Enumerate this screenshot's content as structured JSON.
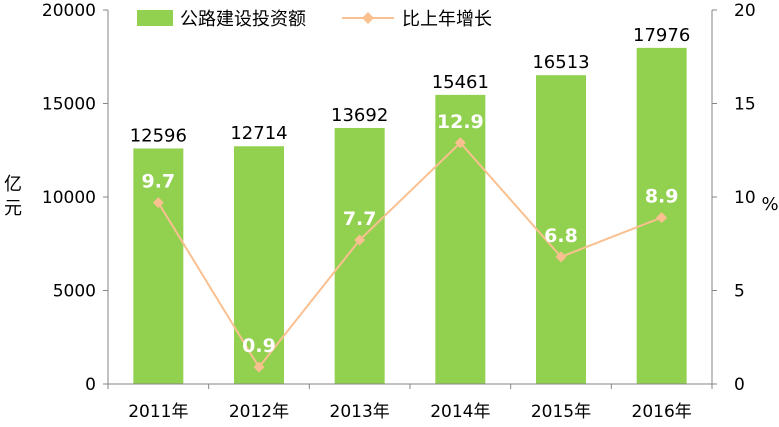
{
  "chart_data": {
    "type": "bar",
    "categories": [
      "2011年",
      "2012年",
      "2013年",
      "2014年",
      "2015年",
      "2016年"
    ],
    "series": [
      {
        "name": "公路建设投资额",
        "type": "bar",
        "axis": "left",
        "values": [
          12596,
          12714,
          13692,
          15461,
          16513,
          17976
        ],
        "labels": [
          "12596",
          "12714",
          "13692",
          "15461",
          "16513",
          "17976"
        ],
        "color": "#92d050"
      },
      {
        "name": "比上年增长",
        "type": "line",
        "axis": "right",
        "values": [
          9.7,
          0.9,
          7.7,
          12.9,
          6.8,
          8.9
        ],
        "labels": [
          "9.7",
          "0.9",
          "7.7",
          "12.9",
          "6.8",
          "8.9"
        ],
        "color": "#fac090"
      }
    ],
    "ylabel_left": "亿元",
    "ylabel_right": "%",
    "ylim_left": [
      0,
      20000
    ],
    "yticks_left": [
      "0",
      "5000",
      "10000",
      "15000",
      "20000"
    ],
    "ylim_right": [
      0,
      20
    ],
    "yticks_right": [
      "0",
      "5",
      "10",
      "15",
      "20"
    ],
    "legend_position": "top",
    "grid": false
  }
}
